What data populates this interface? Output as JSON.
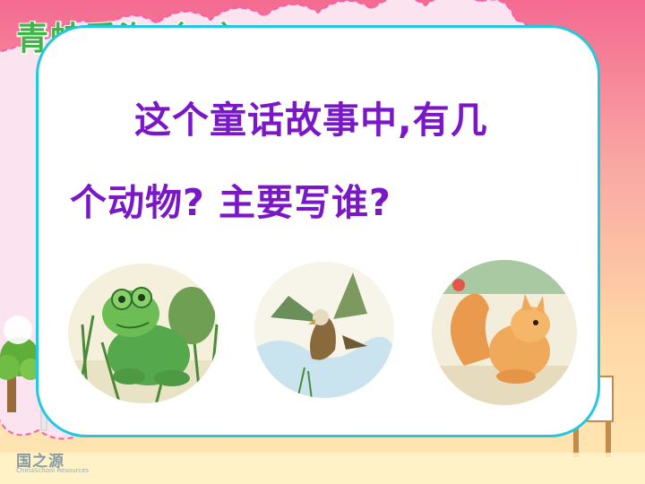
{
  "slide": {
    "title": "青蛙看海（二）",
    "question_line1": "这个童话故事中,有几",
    "question_line2": "个动物? 主要写谁?"
  },
  "illustrations": [
    {
      "name": "frog",
      "icon": "frog-illustration"
    },
    {
      "name": "eagle",
      "icon": "eagle-illustration"
    },
    {
      "name": "squirrel",
      "icon": "squirrel-illustration"
    }
  ],
  "watermark": {
    "logo_text": "国之源",
    "logo_sub": "ChinaSchool Resources"
  },
  "colors": {
    "question_text": "#7a18c8",
    "title_text": "#3fb545",
    "card_border": "#22c8e0",
    "background_top": "#f26a8f",
    "background_bottom": "#ffe7a8"
  }
}
